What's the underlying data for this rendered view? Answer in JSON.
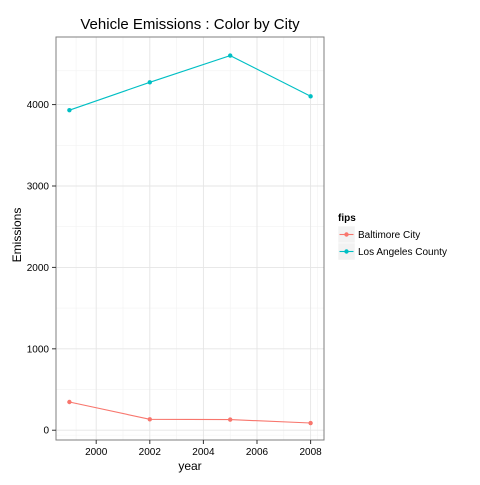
{
  "chart_data": {
    "type": "line",
    "title": "Vehicle Emissions : Color by City",
    "xlabel": "year",
    "ylabel": "Emissions",
    "x": [
      1999,
      2002,
      2005,
      2008
    ],
    "xlim": [
      1998.5,
      2008.5
    ],
    "ylim": [
      -120,
      4830
    ],
    "xticks": [
      2000,
      2002,
      2004,
      2006,
      2008
    ],
    "yticks": [
      0,
      1000,
      2000,
      3000,
      4000
    ],
    "grid": true,
    "theme": "bw",
    "legend": {
      "title": "fips",
      "position": "right"
    },
    "series": [
      {
        "name": "Baltimore City",
        "color": "#f8766d",
        "values": [
          346.8,
          134.3,
          130.4,
          88.3
        ]
      },
      {
        "name": "Los Angeles County",
        "color": "#00bfc4",
        "values": [
          3931.1,
          4274.0,
          4601.4,
          4101.3
        ]
      }
    ]
  }
}
